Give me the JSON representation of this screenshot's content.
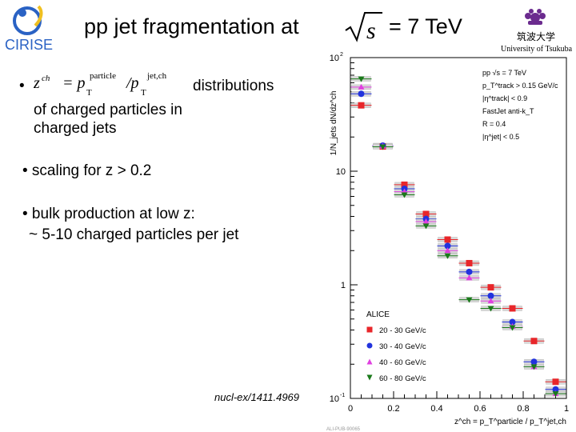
{
  "slide": {
    "title_prefix": "pp jet fragmentation at",
    "title_suffix": "= 7 TeV",
    "sqrt_symbol": "s",
    "bullets": [
      {
        "bullet": "•",
        "text_after_formula": "distributions",
        "cont": [
          "of charged particles in",
          "charged jets"
        ]
      },
      {
        "text": "• scaling for z > 0.2"
      },
      {
        "text": "• bulk production at low z:",
        "cont": "~ 5-10 charged particles per jet"
      }
    ],
    "formula": {
      "lhs": "z",
      "lhs_sup": "ch",
      "eq": "= p",
      "sub1": "T",
      "sup1": "particle",
      "div": "/p",
      "sub2": "T",
      "sup2": "jet,ch"
    },
    "reference": "nucl-ex/1411.4969",
    "logos": {
      "left": "CIRISE",
      "right_jp": "筑波大学",
      "right_en": "University of Tsukuba"
    },
    "colors": {
      "red": "#e8262a",
      "blue": "#2233dd",
      "magenta": "#e040e0",
      "green": "#1a7a1a",
      "box": "#d8d8d8"
    }
  },
  "chart_data": {
    "type": "scatter",
    "ylabel": "1/N_jets dN/dz^ch",
    "xlabel": "z^ch = p_T^particle / p_T^jet,ch",
    "yscale": "log",
    "xlim": [
      0,
      1
    ],
    "ylim": [
      0.1,
      100
    ],
    "x_ticks": [
      "0",
      "0.2",
      "0.4",
      "0.6",
      "0.8",
      "1"
    ],
    "y_ticks": [
      "10^-1",
      "1",
      "10",
      "10^2"
    ],
    "info_text": [
      "pp √s = 7 TeV",
      "p_T^track > 0.15 GeV/c",
      "|η^track| < 0.9",
      "FastJet anti-k_T",
      "R = 0.4",
      "|η^jet| < 0.5"
    ],
    "legend_title": "ALICE",
    "legend_position": "bottom-left",
    "footer_code": "ALI-PUB-90065",
    "series": [
      {
        "name": "20 - 30 GeV/c",
        "marker": "square",
        "color": "#e8262a",
        "x": [
          0.05,
          0.15,
          0.25,
          0.35,
          0.45,
          0.55,
          0.65,
          0.75,
          0.85,
          0.95
        ],
        "y": [
          38,
          16.5,
          7.6,
          4.2,
          2.5,
          1.55,
          0.95,
          0.62,
          0.32,
          0.14
        ]
      },
      {
        "name": "30 - 40 GeV/c",
        "marker": "circle",
        "color": "#2233dd",
        "x": [
          0.05,
          0.15,
          0.25,
          0.35,
          0.45,
          0.55,
          0.65,
          0.75,
          0.85,
          0.95
        ],
        "y": [
          48,
          16.8,
          7.0,
          3.8,
          2.2,
          1.3,
          0.8,
          0.47,
          0.21,
          0.12
        ]
      },
      {
        "name": "40 - 60 GeV/c",
        "marker": "triangle-up",
        "color": "#e040e0",
        "x": [
          0.05,
          0.15,
          0.25,
          0.35,
          0.45,
          0.55,
          0.65,
          0.75,
          0.85,
          0.95
        ],
        "y": [
          55,
          16.6,
          6.6,
          3.6,
          2.0,
          1.15,
          0.72,
          0.43,
          0.19,
          0.11
        ]
      },
      {
        "name": "60 - 80 GeV/c",
        "marker": "triangle-down",
        "color": "#1a7a1a",
        "x": [
          0.05,
          0.15,
          0.25,
          0.35,
          0.45,
          0.55,
          0.65,
          0.75,
          0.85,
          0.95
        ],
        "y": [
          65,
          16.4,
          6.2,
          3.3,
          1.8,
          0.74,
          0.62,
          0.42,
          0.19,
          0.11
        ]
      }
    ]
  }
}
